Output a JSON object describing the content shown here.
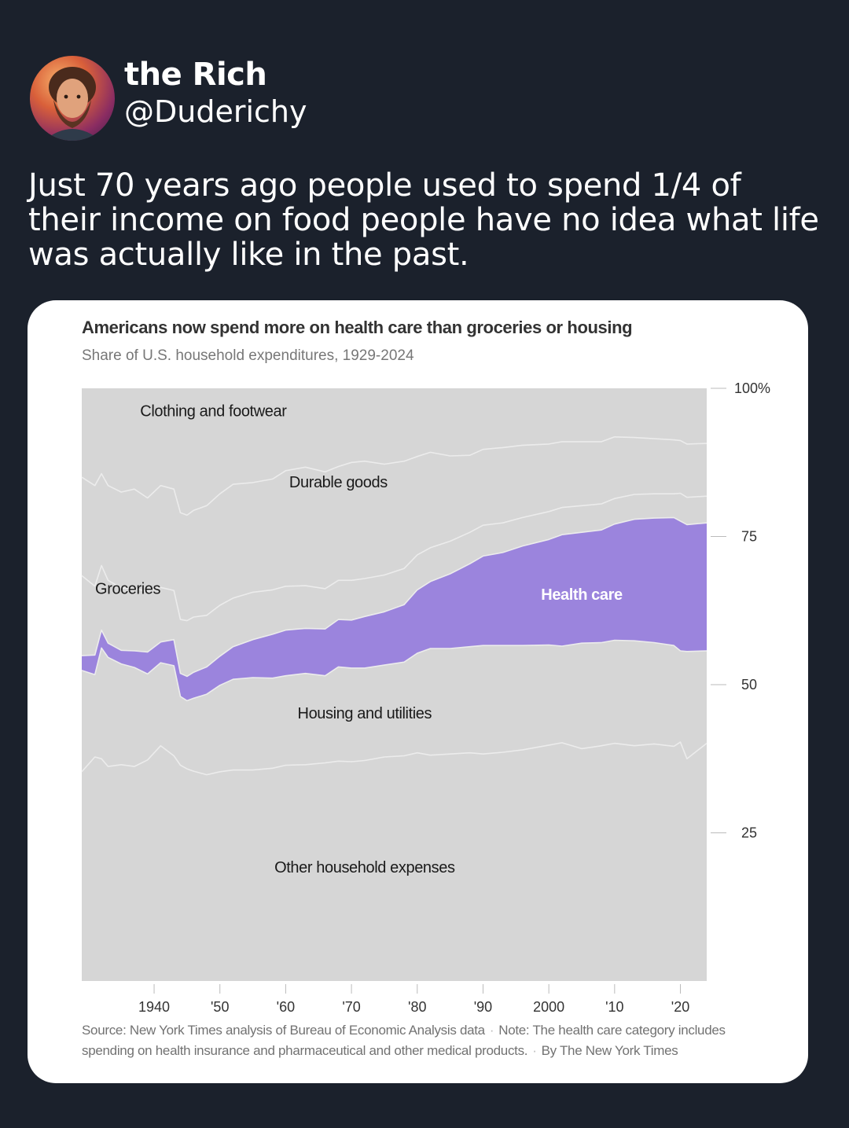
{
  "tweet": {
    "author_name": "the Rich",
    "author_handle": "@Duderichy",
    "text": "Just 70 years ago people used to spend 1/4 of their income on food people have no idea what life was actually like in the past."
  },
  "colors": {
    "background": "#1b212c",
    "card": "#ffffff",
    "plot_area": "#d6d6d6",
    "boundary_lines": "#ececec",
    "health_care": "#9b84dd",
    "label_text": "#1a1a1a"
  },
  "chart_data": {
    "type": "area",
    "stacked": true,
    "title": "Americans now spend more on health care than groceries or housing",
    "subtitle": "Share of U.S. household expenditures, 1929-2024",
    "xlim": [
      1929,
      2024
    ],
    "ylim": [
      0,
      100
    ],
    "x_ticks": [
      1940,
      1950,
      1960,
      1970,
      1980,
      1990,
      2000,
      2010,
      2020
    ],
    "x_tick_labels": [
      "1940",
      "'50",
      "'60",
      "'70",
      "'80",
      "'90",
      "2000",
      "'10",
      "'20"
    ],
    "y_ticks": [
      25,
      50,
      75,
      100
    ],
    "y_tick_labels": [
      "25",
      "50",
      "75",
      "100%"
    ],
    "y_axis_side": "right",
    "x": [
      1929,
      1931,
      1932,
      1933,
      1935,
      1937,
      1939,
      1941,
      1943,
      1944,
      1945,
      1946,
      1948,
      1950,
      1952,
      1955,
      1958,
      1960,
      1963,
      1966,
      1968,
      1970,
      1972,
      1975,
      1978,
      1980,
      1982,
      1985,
      1988,
      1990,
      1993,
      1996,
      2000,
      2002,
      2005,
      2008,
      2010,
      2013,
      2016,
      2019,
      2020,
      2021,
      2024
    ],
    "series": [
      {
        "name": "Other household expenses",
        "label_position": [
          1972,
          19
        ],
        "values": [
          35.3,
          37.8,
          37.5,
          36.2,
          36.5,
          36.2,
          37.3,
          39.7,
          38.0,
          36.4,
          35.8,
          35.4,
          34.8,
          35.3,
          35.6,
          35.6,
          35.9,
          36.4,
          36.5,
          36.8,
          37.1,
          37.0,
          37.2,
          37.8,
          38.0,
          38.5,
          38.1,
          38.3,
          38.5,
          38.3,
          38.6,
          39.0,
          39.8,
          40.2,
          39.2,
          39.7,
          40.1,
          39.7,
          40.0,
          39.6,
          40.3,
          37.5,
          40.1
        ]
      },
      {
        "name": "Housing and utilities",
        "label_position": [
          1972,
          45
        ],
        "values": [
          17.1,
          13.9,
          18.7,
          18.4,
          17.0,
          16.7,
          14.5,
          14.0,
          15.2,
          11.6,
          11.5,
          12.3,
          13.6,
          14.6,
          15.3,
          15.6,
          15.2,
          15.1,
          15.4,
          14.7,
          15.9,
          15.8,
          15.6,
          15.5,
          15.8,
          16.8,
          18.0,
          17.8,
          17.9,
          18.3,
          18.0,
          17.6,
          16.9,
          16.3,
          17.8,
          17.4,
          17.4,
          17.7,
          17.1,
          17.0,
          15.4,
          18.1,
          15.6
        ]
      },
      {
        "name": "Health care",
        "label_color": "#ffffff",
        "label_position": [
          2005,
          65
        ],
        "values": [
          2.5,
          3.3,
          3.0,
          2.4,
          2.3,
          2.8,
          3.7,
          3.5,
          4.4,
          3.9,
          4.1,
          4.4,
          4.6,
          4.9,
          5.5,
          6.4,
          7.4,
          7.7,
          7.6,
          7.9,
          8.0,
          8.1,
          8.7,
          9.0,
          9.7,
          10.7,
          11.3,
          12.6,
          14.0,
          15.1,
          15.7,
          16.8,
          17.8,
          18.8,
          18.7,
          19.0,
          19.6,
          20.5,
          21.0,
          21.6,
          21.9,
          21.4,
          21.6
        ]
      },
      {
        "name": "Groceries",
        "label_position": [
          1936,
          66
        ],
        "values": [
          13.5,
          11.6,
          10.9,
          10.6,
          10.5,
          10.5,
          10.3,
          9.2,
          8.3,
          9.1,
          9.4,
          9.3,
          8.7,
          8.6,
          8.2,
          8.0,
          7.5,
          7.4,
          7.2,
          6.8,
          6.6,
          6.7,
          6.4,
          6.2,
          6.1,
          5.9,
          5.7,
          5.5,
          5.3,
          5.2,
          5.0,
          4.8,
          4.7,
          4.6,
          4.5,
          4.4,
          4.3,
          4.2,
          4.1,
          4.0,
          4.7,
          4.6,
          4.5
        ]
      },
      {
        "name": "Durable goods",
        "label_position": [
          1968,
          84
        ],
        "values": [
          16.6,
          17.0,
          15.5,
          16.0,
          16.2,
          16.8,
          15.7,
          17.2,
          17.1,
          18.0,
          17.8,
          18.0,
          18.5,
          18.8,
          19.2,
          18.5,
          18.7,
          19.5,
          20.0,
          19.7,
          19.2,
          19.9,
          19.8,
          18.7,
          18.1,
          16.6,
          16.1,
          14.4,
          13.0,
          12.8,
          12.7,
          12.2,
          11.4,
          11.1,
          10.8,
          10.5,
          10.4,
          9.6,
          9.3,
          9.1,
          8.9,
          9.0,
          8.9
        ]
      },
      {
        "name": "Clothing and footwear",
        "label_position": [
          1949,
          96
        ],
        "values": [
          15.0,
          16.4,
          14.4,
          16.4,
          17.5,
          17.0,
          18.5,
          16.4,
          17.0,
          21.0,
          21.4,
          20.6,
          19.8,
          17.8,
          16.2,
          15.9,
          15.3,
          13.9,
          13.3,
          14.1,
          13.2,
          12.5,
          12.3,
          12.8,
          12.3,
          11.5,
          10.8,
          11.4,
          11.3,
          10.3,
          10.0,
          9.6,
          9.4,
          9.0,
          9.0,
          9.0,
          8.2,
          8.3,
          8.5,
          8.7,
          8.8,
          9.4,
          9.3
        ]
      }
    ],
    "source": "Source: New York Times analysis of Bureau of Economic Analysis data",
    "note": "Note: The health care category includes spending on health insurance and pharmaceutical and other medical products.",
    "credit": "By The New York Times"
  }
}
